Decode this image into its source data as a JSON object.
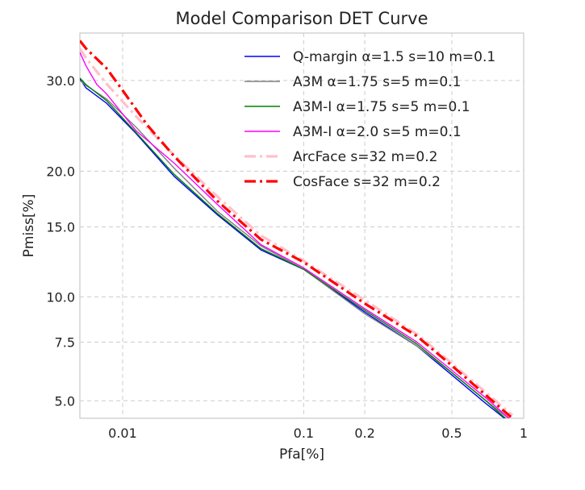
{
  "chart_data": {
    "type": "line",
    "title": "Model Comparison DET Curve",
    "xlabel": "Pfa[%]",
    "ylabel": "Pmiss[%]",
    "x_scale": "probit",
    "y_scale": "probit",
    "xlim": [
      0.0055,
      1.0
    ],
    "ylim": [
      4.4,
      36.0
    ],
    "x_ticks": [
      0.01,
      0.1,
      0.2,
      0.5,
      1
    ],
    "x_tick_labels": [
      "0.01",
      "0.1",
      "0.2",
      "0.5",
      "1"
    ],
    "y_ticks": [
      5.0,
      7.5,
      10.0,
      15.0,
      20.0,
      30.0
    ],
    "y_tick_labels": [
      "5.0",
      "7.5",
      "10.0",
      "15.0",
      "20.0",
      "30.0"
    ],
    "grid": true,
    "legend_position": "top-right",
    "series": [
      {
        "name": "Q-margin α=1.5 s=10 m=0.1",
        "color": "#0000ff",
        "dash": "solid",
        "width": 1.4,
        "x": [
          0.0055,
          0.006,
          0.008,
          0.012,
          0.02,
          0.035,
          0.06,
          0.1,
          0.2,
          0.35,
          0.5,
          0.7,
          0.9
        ],
        "y": [
          30.2,
          29.1,
          27.3,
          23.9,
          19.5,
          16.0,
          13.2,
          11.8,
          9.1,
          7.3,
          6.0,
          4.9,
          4.2
        ]
      },
      {
        "name": "A3M α=1.75 s=5 m=0.1",
        "color": "#808080",
        "dash": "solid",
        "width": 1.4,
        "x": [
          0.0055,
          0.006,
          0.008,
          0.012,
          0.02,
          0.035,
          0.06,
          0.1,
          0.2,
          0.35,
          0.5,
          0.7,
          0.9
        ],
        "y": [
          30.0,
          29.4,
          27.8,
          24.6,
          20.3,
          16.3,
          13.5,
          11.8,
          9.0,
          7.3,
          6.1,
          5.0,
          4.3
        ]
      },
      {
        "name": "A3M-I α=1.75 s=5 m=0.1",
        "color": "#008000",
        "dash": "solid",
        "width": 1.4,
        "x": [
          0.0055,
          0.006,
          0.008,
          0.012,
          0.02,
          0.035,
          0.06,
          0.1,
          0.2,
          0.35,
          0.5,
          0.7,
          0.9
        ],
        "y": [
          30.3,
          29.5,
          27.6,
          24.0,
          19.7,
          16.1,
          13.3,
          11.8,
          9.2,
          7.4,
          6.1,
          5.0,
          4.2
        ]
      },
      {
        "name": "A3M-I α=2.0 s=5 m=0.1",
        "color": "#ff00ff",
        "dash": "solid",
        "width": 1.4,
        "x": [
          0.0055,
          0.006,
          0.007,
          0.008,
          0.012,
          0.02,
          0.035,
          0.06,
          0.1,
          0.2,
          0.35,
          0.5,
          0.7,
          0.9
        ],
        "y": [
          33.5,
          31.8,
          29.5,
          28.4,
          24.2,
          20.8,
          16.9,
          13.6,
          11.9,
          9.3,
          7.5,
          6.2,
          5.1,
          4.3
        ]
      },
      {
        "name": "ArcFace s=32 m=0.2",
        "color": "#ffc0cb",
        "dash": "dashdot",
        "width": 3.2,
        "x": [
          0.0055,
          0.006,
          0.008,
          0.012,
          0.02,
          0.035,
          0.06,
          0.1,
          0.2,
          0.35,
          0.5,
          0.7,
          0.9
        ],
        "y": [
          34.0,
          32.8,
          29.6,
          25.8,
          21.6,
          17.6,
          14.3,
          12.4,
          9.8,
          7.9,
          6.5,
          5.3,
          4.5
        ]
      },
      {
        "name": "CosFace s=32 m=0.2",
        "color": "#ff0000",
        "dash": "dashdot",
        "width": 3.2,
        "x": [
          0.0055,
          0.006,
          0.008,
          0.01,
          0.014,
          0.02,
          0.035,
          0.06,
          0.1,
          0.2,
          0.35,
          0.5,
          0.7,
          0.9
        ],
        "y": [
          35.0,
          34.0,
          31.5,
          28.8,
          24.8,
          21.5,
          17.2,
          14.0,
          12.3,
          9.6,
          7.8,
          6.4,
          5.2,
          4.4
        ]
      }
    ]
  }
}
